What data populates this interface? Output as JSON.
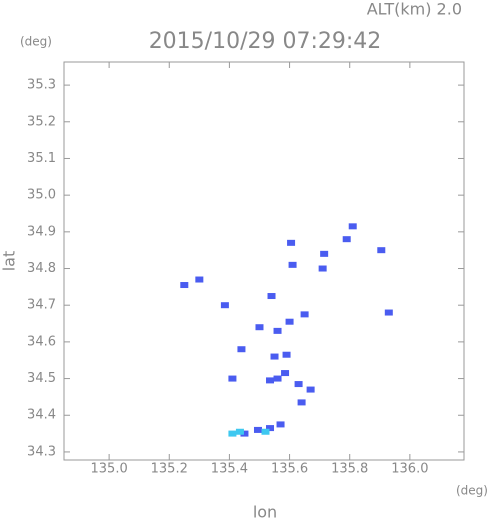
{
  "chart_data": {
    "type": "scatter",
    "title": "2015/10/29 07:29:42",
    "subtitle": "ALT(km) 2.0",
    "x_label": "lon",
    "y_label": "lat",
    "x_unit": "(deg)",
    "y_unit": "(deg)",
    "xlim": [
      134.85,
      136.18
    ],
    "ylim": [
      34.278,
      35.363
    ],
    "xticks": [
      {
        "value": 135,
        "label": "135.0"
      },
      135.2,
      135.4,
      135.6,
      135.8,
      {
        "value": 136,
        "label": "136.0"
      }
    ],
    "yticks": [
      34.3,
      34.4,
      34.5,
      34.6,
      34.7,
      34.8,
      34.9,
      {
        "value": 35,
        "label": "35.0"
      },
      35.1,
      35.2,
      35.3
    ],
    "series": [
      {
        "color": "#4a5cf0",
        "x": [
          135.25,
          135.3,
          135.385,
          135.41,
          135.44,
          135.54,
          135.61,
          135.605,
          135.715,
          135.71,
          135.81,
          135.79,
          135.905,
          135.93,
          135.65,
          135.56,
          135.55,
          135.59,
          135.56,
          135.585,
          135.535,
          135.63,
          135.67,
          135.64,
          135.6,
          135.5,
          135.57,
          135.535,
          135.495,
          135.45
        ],
        "values": [
          34.755,
          34.77,
          34.7,
          34.5,
          34.58,
          34.725,
          34.81,
          34.87,
          34.84,
          34.8,
          34.915,
          34.88,
          34.85,
          34.68,
          34.675,
          34.63,
          34.56,
          34.565,
          34.5,
          34.515,
          34.495,
          34.485,
          34.47,
          34.435,
          34.655,
          34.64,
          34.375,
          34.365,
          34.36,
          34.35
        ]
      },
      {
        "color": "#3ec8f0",
        "x": [
          135.41,
          135.435,
          135.52
        ],
        "values": [
          34.35,
          34.355,
          34.355
        ]
      }
    ]
  }
}
